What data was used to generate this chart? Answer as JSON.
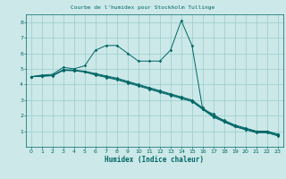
{
  "title": "Courbe de l'humidex pour Stockholm Tullinge",
  "xlabel": "Humidex (Indice chaleur)",
  "bg_color": "#cce8e8",
  "line_color": "#006666",
  "grid_color": "#99cccc",
  "xlim": [
    -0.5,
    23.5
  ],
  "ylim": [
    0,
    8.5
  ],
  "xticks": [
    0,
    1,
    2,
    3,
    4,
    5,
    6,
    7,
    8,
    9,
    10,
    11,
    12,
    13,
    14,
    15,
    16,
    17,
    18,
    19,
    20,
    21,
    22,
    23
  ],
  "yticks": [
    1,
    2,
    3,
    4,
    5,
    6,
    7,
    8
  ],
  "curve1_x": [
    0,
    1,
    2,
    3,
    4,
    5,
    6,
    7,
    8,
    9,
    10,
    11,
    12,
    13,
    14,
    15,
    16,
    17,
    18,
    19,
    20,
    21,
    22,
    23
  ],
  "curve1_y": [
    4.5,
    4.6,
    4.65,
    5.1,
    5.0,
    5.2,
    6.2,
    6.5,
    6.5,
    6.0,
    5.5,
    5.5,
    5.5,
    6.2,
    8.1,
    6.5,
    2.4,
    2.1,
    1.6,
    1.3,
    1.1,
    1.0,
    1.0,
    0.8
  ],
  "curve2_x": [
    0,
    1,
    2,
    3,
    4,
    5,
    6,
    7,
    8,
    9,
    10,
    11,
    12,
    13,
    14,
    15,
    16,
    17,
    18,
    19,
    20,
    21,
    22,
    23
  ],
  "curve2_y": [
    4.5,
    4.55,
    4.58,
    4.95,
    4.92,
    4.85,
    4.7,
    4.55,
    4.4,
    4.2,
    4.0,
    3.8,
    3.6,
    3.4,
    3.2,
    3.0,
    2.5,
    2.0,
    1.7,
    1.4,
    1.2,
    1.0,
    1.0,
    0.8
  ],
  "curve3_x": [
    0,
    1,
    2,
    3,
    4,
    5,
    6,
    7,
    8,
    9,
    10,
    11,
    12,
    13,
    14,
    15,
    16,
    17,
    18,
    19,
    20,
    21,
    22,
    23
  ],
  "curve3_y": [
    4.5,
    4.54,
    4.57,
    4.92,
    4.9,
    4.82,
    4.65,
    4.5,
    4.35,
    4.15,
    3.95,
    3.75,
    3.55,
    3.35,
    3.15,
    2.95,
    2.45,
    1.95,
    1.65,
    1.35,
    1.15,
    0.95,
    0.95,
    0.75
  ],
  "curve4_x": [
    0,
    1,
    2,
    3,
    4,
    5,
    6,
    7,
    8,
    9,
    10,
    11,
    12,
    13,
    14,
    15,
    16,
    17,
    18,
    19,
    20,
    21,
    22,
    23
  ],
  "curve4_y": [
    4.5,
    4.53,
    4.56,
    4.9,
    4.88,
    4.8,
    4.6,
    4.45,
    4.3,
    4.1,
    3.9,
    3.7,
    3.5,
    3.3,
    3.1,
    2.9,
    2.4,
    1.9,
    1.6,
    1.3,
    1.1,
    0.9,
    0.9,
    0.7
  ]
}
